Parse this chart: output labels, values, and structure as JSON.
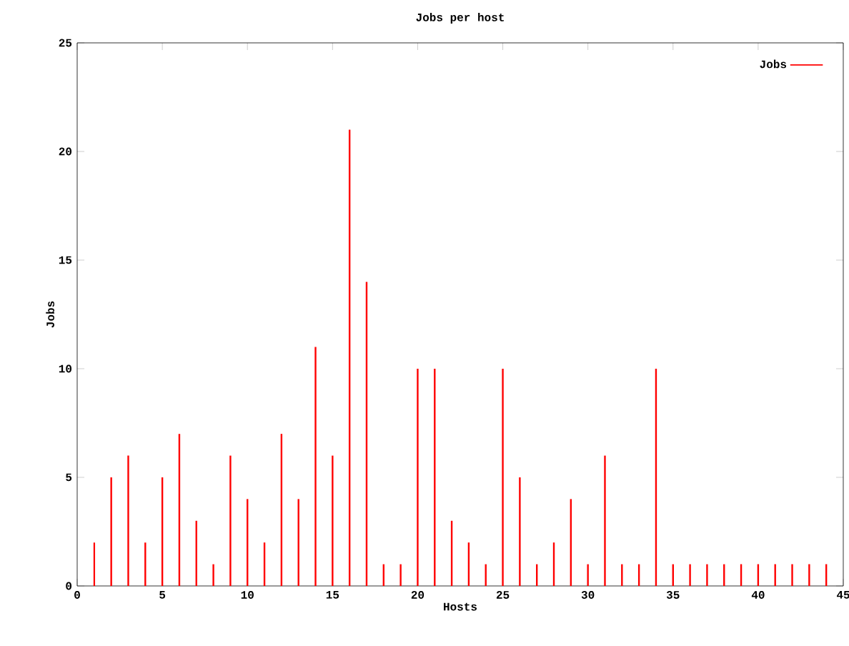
{
  "chart_data": {
    "type": "bar",
    "title": "Jobs per host",
    "xlabel": "Hosts",
    "ylabel": "Jobs",
    "x": [
      1,
      2,
      3,
      4,
      5,
      6,
      7,
      8,
      9,
      10,
      11,
      12,
      13,
      14,
      15,
      16,
      17,
      18,
      19,
      20,
      21,
      22,
      23,
      24,
      25,
      26,
      27,
      28,
      29,
      30,
      31,
      32,
      33,
      34,
      35,
      36,
      37,
      38,
      39,
      40,
      41,
      42,
      43,
      44
    ],
    "series": [
      {
        "name": "Jobs",
        "color": "#ff0000",
        "values": [
          2,
          5,
          6,
          2,
          5,
          7,
          3,
          1,
          6,
          4,
          2,
          7,
          4,
          11,
          6,
          21,
          14,
          1,
          1,
          10,
          10,
          3,
          2,
          1,
          10,
          5,
          1,
          2,
          4,
          1,
          6,
          1,
          1,
          10,
          1,
          1,
          1,
          1,
          1,
          1,
          1,
          1,
          1,
          1
        ]
      }
    ],
    "xlim": [
      0,
      45
    ],
    "xticks": [
      0,
      5,
      10,
      15,
      20,
      25,
      30,
      35,
      40,
      45
    ],
    "ylim": [
      0,
      25
    ],
    "yticks": [
      0,
      5,
      10,
      15,
      20,
      25
    ],
    "legend": "top right"
  }
}
